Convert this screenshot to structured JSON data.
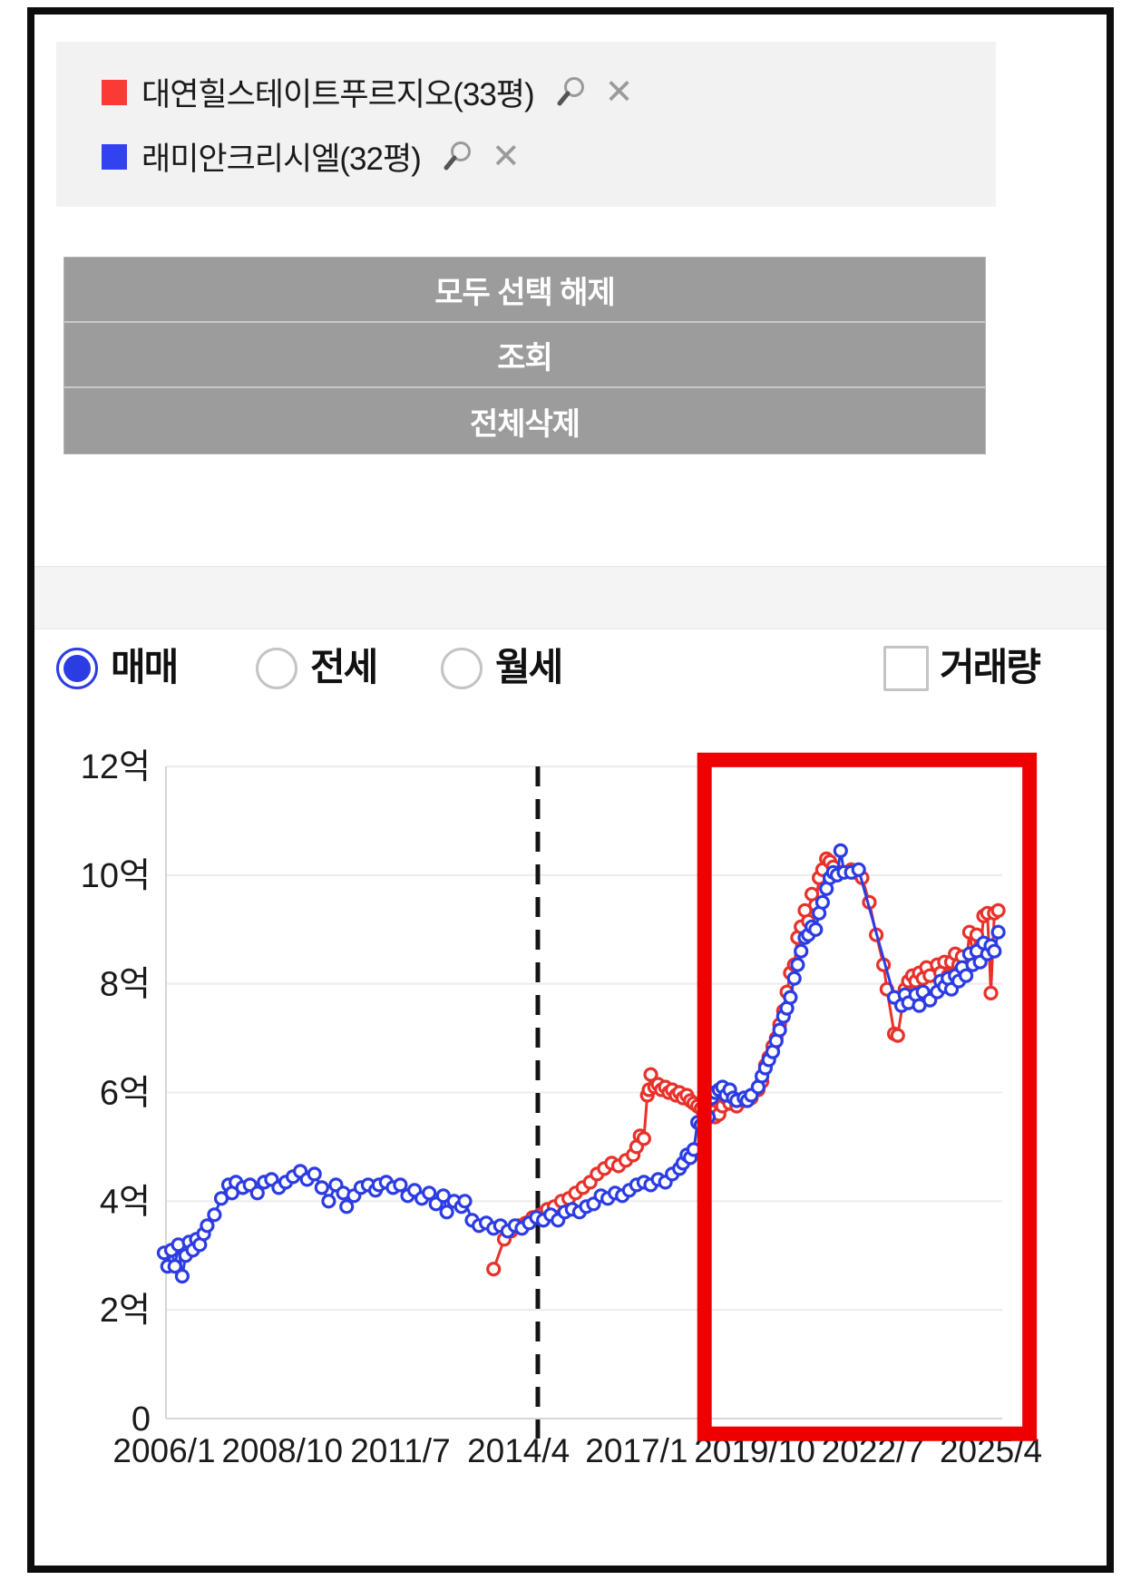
{
  "page": {
    "background": "#ffffff",
    "frame_color": "#0d0d0d"
  },
  "icons": {
    "close_glyph": "✕"
  },
  "legend_panel": {
    "background": "#f2f2f2",
    "items": [
      {
        "label": "대연힐스테이트푸르지오(33평)",
        "color": "#fb3a36"
      },
      {
        "label": "래미안크리시엘(32평)",
        "color": "#3342f0"
      }
    ]
  },
  "buttons": [
    {
      "label": "모두 선택 해제"
    },
    {
      "label": "조회"
    },
    {
      "label": "전체삭제"
    }
  ],
  "controls": {
    "trade_type": {
      "options": [
        {
          "label": "매매",
          "selected": true
        },
        {
          "label": "전세",
          "selected": false
        },
        {
          "label": "월세",
          "selected": false
        }
      ],
      "selected_color": "#2c3ce3"
    },
    "volume_checkbox": {
      "label": "거래량",
      "checked": false
    }
  },
  "chart_data": {
    "type": "line",
    "title": "",
    "xlabel": "",
    "ylabel": "",
    "unit": "억",
    "grid": true,
    "xlim": [
      2006.0,
      2025.45
    ],
    "ylim": [
      0,
      12
    ],
    "x_ticks": [
      {
        "v": 2006.0,
        "label": "2006/1"
      },
      {
        "v": 2008.75,
        "label": "2008/10"
      },
      {
        "v": 2011.5,
        "label": "2011/7"
      },
      {
        "v": 2014.25,
        "label": "2014/4"
      },
      {
        "v": 2017.0,
        "label": "2017/1"
      },
      {
        "v": 2019.75,
        "label": "2019/10"
      },
      {
        "v": 2022.5,
        "label": "2022/7"
      },
      {
        "v": 2025.25,
        "label": "2025/4"
      }
    ],
    "y_ticks": [
      {
        "v": 0,
        "label": "0"
      },
      {
        "v": 2,
        "label": "2억"
      },
      {
        "v": 4,
        "label": "4억"
      },
      {
        "v": 6,
        "label": "6억"
      },
      {
        "v": 8,
        "label": "8억"
      },
      {
        "v": 10,
        "label": "10억"
      },
      {
        "v": 12,
        "label": "12억"
      }
    ],
    "annotations": {
      "dashed_vline": {
        "x": 2014.7,
        "color": "#141414"
      },
      "highlight_box": {
        "x1": 2018.58,
        "x2": 2026.15,
        "y1": -0.28,
        "y2": 12.12,
        "color": "#ee0000"
      }
    },
    "series": [
      {
        "name": "대연힐스테이트푸르지오(33평)",
        "color": "#e8312a",
        "points": [
          [
            2013.67,
            2.75
          ],
          [
            2013.92,
            3.3
          ],
          [
            2014.08,
            3.45
          ],
          [
            2014.25,
            3.55
          ],
          [
            2014.42,
            3.6
          ],
          [
            2014.58,
            3.7
          ],
          [
            2014.75,
            3.75
          ],
          [
            2014.92,
            3.85
          ],
          [
            2015.08,
            3.9
          ],
          [
            2015.25,
            4.0
          ],
          [
            2015.42,
            4.05
          ],
          [
            2015.58,
            4.15
          ],
          [
            2015.75,
            4.25
          ],
          [
            2015.92,
            4.35
          ],
          [
            2016.08,
            4.5
          ],
          [
            2016.25,
            4.6
          ],
          [
            2016.42,
            4.7
          ],
          [
            2016.58,
            4.65
          ],
          [
            2016.75,
            4.75
          ],
          [
            2016.92,
            4.85
          ],
          [
            2017.0,
            5.0
          ],
          [
            2017.08,
            5.2
          ],
          [
            2017.17,
            5.15
          ],
          [
            2017.25,
            5.95
          ],
          [
            2017.29,
            6.05
          ],
          [
            2017.33,
            6.33
          ],
          [
            2017.42,
            6.1
          ],
          [
            2017.5,
            6.15
          ],
          [
            2017.58,
            6.05
          ],
          [
            2017.67,
            6.1
          ],
          [
            2017.75,
            6.0
          ],
          [
            2017.83,
            6.05
          ],
          [
            2017.92,
            5.95
          ],
          [
            2018.0,
            6.0
          ],
          [
            2018.08,
            5.9
          ],
          [
            2018.17,
            5.95
          ],
          [
            2018.25,
            5.85
          ],
          [
            2018.33,
            5.8
          ],
          [
            2018.42,
            5.75
          ],
          [
            2018.5,
            5.7
          ],
          [
            2018.58,
            5.6
          ],
          [
            2018.67,
            5.55
          ],
          [
            2018.75,
            5.65
          ],
          [
            2018.83,
            5.55
          ],
          [
            2018.92,
            5.6
          ],
          [
            2019.0,
            5.75
          ],
          [
            2019.08,
            5.9
          ],
          [
            2019.17,
            5.8
          ],
          [
            2019.33,
            5.75
          ],
          [
            2019.5,
            5.85
          ],
          [
            2019.67,
            5.9
          ],
          [
            2019.83,
            6.05
          ],
          [
            2019.92,
            6.2
          ],
          [
            2020.0,
            6.5
          ],
          [
            2020.08,
            6.65
          ],
          [
            2020.17,
            6.85
          ],
          [
            2020.25,
            7.0
          ],
          [
            2020.33,
            7.25
          ],
          [
            2020.42,
            7.5
          ],
          [
            2020.5,
            7.85
          ],
          [
            2020.58,
            8.2
          ],
          [
            2020.67,
            8.35
          ],
          [
            2020.75,
            8.85
          ],
          [
            2020.83,
            9.05
          ],
          [
            2020.92,
            9.35
          ],
          [
            2021.0,
            9.15
          ],
          [
            2021.08,
            9.65
          ],
          [
            2021.17,
            9.45
          ],
          [
            2021.25,
            9.95
          ],
          [
            2021.33,
            10.1
          ],
          [
            2021.42,
            10.3
          ],
          [
            2021.5,
            10.25
          ],
          [
            2021.58,
            10.15
          ],
          [
            2021.67,
            10.0
          ],
          [
            2021.75,
            10.05
          ],
          [
            2022.0,
            10.1
          ],
          [
            2022.08,
            10.05
          ],
          [
            2022.25,
            9.95
          ],
          [
            2022.42,
            9.5
          ],
          [
            2022.58,
            8.9
          ],
          [
            2022.75,
            8.35
          ],
          [
            2022.83,
            7.9
          ],
          [
            2023.0,
            7.08
          ],
          [
            2023.08,
            7.05
          ],
          [
            2023.25,
            7.9
          ],
          [
            2023.33,
            8.05
          ],
          [
            2023.42,
            8.15
          ],
          [
            2023.5,
            8.05
          ],
          [
            2023.58,
            8.2
          ],
          [
            2023.67,
            8.1
          ],
          [
            2023.75,
            8.3
          ],
          [
            2023.83,
            8.15
          ],
          [
            2024.0,
            8.35
          ],
          [
            2024.08,
            8.2
          ],
          [
            2024.17,
            8.4
          ],
          [
            2024.25,
            8.15
          ],
          [
            2024.33,
            8.4
          ],
          [
            2024.42,
            8.55
          ],
          [
            2024.5,
            8.35
          ],
          [
            2024.58,
            8.5
          ],
          [
            2024.67,
            8.3
          ],
          [
            2024.75,
            8.95
          ],
          [
            2024.83,
            8.55
          ],
          [
            2024.92,
            8.9
          ],
          [
            2025.0,
            8.55
          ],
          [
            2025.08,
            9.25
          ],
          [
            2025.17,
            9.3
          ],
          [
            2025.25,
            7.83
          ],
          [
            2025.33,
            9.3
          ],
          [
            2025.42,
            9.35
          ]
        ]
      },
      {
        "name": "래미안크리시엘(32평)",
        "color": "#2c3ce3",
        "points": [
          [
            2006.0,
            3.05
          ],
          [
            2006.08,
            2.8
          ],
          [
            2006.17,
            3.1
          ],
          [
            2006.25,
            2.8
          ],
          [
            2006.33,
            3.2
          ],
          [
            2006.42,
            2.62
          ],
          [
            2006.5,
            3.0
          ],
          [
            2006.58,
            3.25
          ],
          [
            2006.67,
            3.1
          ],
          [
            2006.75,
            3.3
          ],
          [
            2006.83,
            3.2
          ],
          [
            2006.92,
            3.4
          ],
          [
            2007.0,
            3.55
          ],
          [
            2007.17,
            3.75
          ],
          [
            2007.33,
            4.05
          ],
          [
            2007.5,
            4.3
          ],
          [
            2007.58,
            4.15
          ],
          [
            2007.67,
            4.35
          ],
          [
            2007.83,
            4.25
          ],
          [
            2008.0,
            4.3
          ],
          [
            2008.17,
            4.15
          ],
          [
            2008.33,
            4.35
          ],
          [
            2008.5,
            4.4
          ],
          [
            2008.67,
            4.25
          ],
          [
            2008.83,
            4.35
          ],
          [
            2009.0,
            4.45
          ],
          [
            2009.17,
            4.55
          ],
          [
            2009.33,
            4.4
          ],
          [
            2009.5,
            4.5
          ],
          [
            2009.67,
            4.25
          ],
          [
            2009.83,
            4.0
          ],
          [
            2010.0,
            4.3
          ],
          [
            2010.17,
            4.15
          ],
          [
            2010.25,
            3.9
          ],
          [
            2010.42,
            4.1
          ],
          [
            2010.58,
            4.25
          ],
          [
            2010.75,
            4.3
          ],
          [
            2010.92,
            4.2
          ],
          [
            2011.0,
            4.3
          ],
          [
            2011.17,
            4.35
          ],
          [
            2011.33,
            4.25
          ],
          [
            2011.5,
            4.3
          ],
          [
            2011.67,
            4.1
          ],
          [
            2011.83,
            4.2
          ],
          [
            2012.0,
            4.05
          ],
          [
            2012.17,
            4.15
          ],
          [
            2012.33,
            3.95
          ],
          [
            2012.5,
            4.1
          ],
          [
            2012.58,
            3.8
          ],
          [
            2012.75,
            4.0
          ],
          [
            2012.92,
            3.9
          ],
          [
            2013.0,
            4.0
          ],
          [
            2013.17,
            3.65
          ],
          [
            2013.33,
            3.55
          ],
          [
            2013.5,
            3.6
          ],
          [
            2013.67,
            3.5
          ],
          [
            2013.83,
            3.55
          ],
          [
            2014.0,
            3.45
          ],
          [
            2014.17,
            3.55
          ],
          [
            2014.33,
            3.5
          ],
          [
            2014.5,
            3.6
          ],
          [
            2014.67,
            3.7
          ],
          [
            2014.83,
            3.65
          ],
          [
            2015.0,
            3.75
          ],
          [
            2015.17,
            3.65
          ],
          [
            2015.33,
            3.8
          ],
          [
            2015.5,
            3.85
          ],
          [
            2015.67,
            3.8
          ],
          [
            2015.83,
            3.9
          ],
          [
            2016.0,
            3.95
          ],
          [
            2016.17,
            4.1
          ],
          [
            2016.33,
            4.05
          ],
          [
            2016.5,
            4.15
          ],
          [
            2016.67,
            4.1
          ],
          [
            2016.83,
            4.2
          ],
          [
            2017.0,
            4.3
          ],
          [
            2017.17,
            4.35
          ],
          [
            2017.33,
            4.3
          ],
          [
            2017.5,
            4.4
          ],
          [
            2017.67,
            4.35
          ],
          [
            2017.83,
            4.5
          ],
          [
            2018.0,
            4.6
          ],
          [
            2018.08,
            4.7
          ],
          [
            2018.17,
            4.85
          ],
          [
            2018.25,
            4.8
          ],
          [
            2018.33,
            4.95
          ],
          [
            2018.42,
            5.45
          ],
          [
            2018.5,
            5.4
          ],
          [
            2018.58,
            5.5
          ],
          [
            2018.67,
            5.55
          ],
          [
            2018.75,
            5.9
          ],
          [
            2018.83,
            6.0
          ],
          [
            2018.92,
            6.05
          ],
          [
            2019.0,
            6.1
          ],
          [
            2019.08,
            5.95
          ],
          [
            2019.17,
            6.05
          ],
          [
            2019.25,
            5.9
          ],
          [
            2019.33,
            5.85
          ],
          [
            2019.5,
            5.9
          ],
          [
            2019.58,
            5.85
          ],
          [
            2019.67,
            5.95
          ],
          [
            2019.83,
            6.1
          ],
          [
            2019.92,
            6.3
          ],
          [
            2020.0,
            6.45
          ],
          [
            2020.08,
            6.6
          ],
          [
            2020.17,
            6.75
          ],
          [
            2020.25,
            6.95
          ],
          [
            2020.33,
            7.15
          ],
          [
            2020.42,
            7.4
          ],
          [
            2020.5,
            7.55
          ],
          [
            2020.58,
            7.75
          ],
          [
            2020.67,
            8.1
          ],
          [
            2020.75,
            8.35
          ],
          [
            2020.83,
            8.6
          ],
          [
            2020.92,
            8.85
          ],
          [
            2021.0,
            8.9
          ],
          [
            2021.08,
            9.05
          ],
          [
            2021.17,
            9.0
          ],
          [
            2021.25,
            9.3
          ],
          [
            2021.33,
            9.5
          ],
          [
            2021.42,
            9.75
          ],
          [
            2021.5,
            9.95
          ],
          [
            2021.58,
            10.05
          ],
          [
            2021.67,
            10.0
          ],
          [
            2021.75,
            10.45
          ],
          [
            2021.83,
            10.05
          ],
          [
            2022.0,
            10.05
          ],
          [
            2022.17,
            10.1
          ],
          [
            2023.0,
            7.75
          ],
          [
            2023.17,
            7.6
          ],
          [
            2023.25,
            7.8
          ],
          [
            2023.33,
            7.65
          ],
          [
            2023.5,
            7.8
          ],
          [
            2023.58,
            7.6
          ],
          [
            2023.67,
            7.85
          ],
          [
            2023.83,
            7.7
          ],
          [
            2024.0,
            7.85
          ],
          [
            2024.08,
            8.05
          ],
          [
            2024.17,
            7.95
          ],
          [
            2024.25,
            8.1
          ],
          [
            2024.33,
            7.9
          ],
          [
            2024.42,
            8.15
          ],
          [
            2024.5,
            8.05
          ],
          [
            2024.58,
            8.3
          ],
          [
            2024.67,
            8.15
          ],
          [
            2024.75,
            8.55
          ],
          [
            2024.83,
            8.35
          ],
          [
            2024.92,
            8.6
          ],
          [
            2025.0,
            8.4
          ],
          [
            2025.08,
            8.75
          ],
          [
            2025.17,
            8.55
          ],
          [
            2025.25,
            8.7
          ],
          [
            2025.33,
            8.6
          ],
          [
            2025.42,
            8.95
          ]
        ]
      }
    ]
  }
}
